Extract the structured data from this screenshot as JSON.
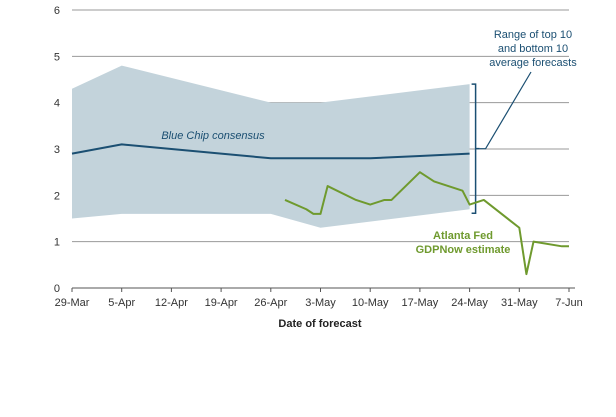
{
  "chart_data": {
    "type": "line",
    "title": "",
    "xlabel": "Date of forecast",
    "ylabel": "",
    "ylim": [
      0,
      6
    ],
    "yticks": [
      "0",
      "1",
      "2",
      "3",
      "4",
      "5",
      "6"
    ],
    "x_ticks": [
      "29-Mar",
      "5-Apr",
      "12-Apr",
      "19-Apr",
      "26-Apr",
      "3-May",
      "10-May",
      "17-May",
      "24-May",
      "31-May",
      "7-Jun"
    ],
    "grid": "horizontal",
    "legend": "none",
    "range_band": {
      "label": "Range of top 10 and bottom 10 average forecasts",
      "color": "#c3d3db",
      "upper": [
        {
          "x": "29-Mar",
          "y": 4.3
        },
        {
          "x": "5-Apr",
          "y": 4.8
        },
        {
          "x": "26-Apr",
          "y": 4.0
        },
        {
          "x": "3-May",
          "y": 4.0
        },
        {
          "x": "24-May",
          "y": 4.4
        }
      ],
      "lower": [
        {
          "x": "29-Mar",
          "y": 1.5
        },
        {
          "x": "5-Apr",
          "y": 1.6
        },
        {
          "x": "26-Apr",
          "y": 1.6
        },
        {
          "x": "3-May",
          "y": 1.3
        },
        {
          "x": "24-May",
          "y": 1.7
        }
      ]
    },
    "series": [
      {
        "name": "Blue Chip consensus",
        "color": "#1b4f72",
        "points": [
          {
            "x": "29-Mar",
            "y": 2.9
          },
          {
            "x": "5-Apr",
            "y": 3.1
          },
          {
            "x": "12-Apr",
            "y": 3.0
          },
          {
            "x": "19-Apr",
            "y": 2.9
          },
          {
            "x": "26-Apr",
            "y": 2.8
          },
          {
            "x": "3-May",
            "y": 2.8
          },
          {
            "x": "10-May",
            "y": 2.8
          },
          {
            "x": "17-May",
            "y": 2.85
          },
          {
            "x": "24-May",
            "y": 2.9
          }
        ]
      },
      {
        "name": "Atlanta Fed GDPNow estimate",
        "color": "#6f9a2e",
        "points": [
          {
            "x": "28-Apr",
            "y": 1.9
          },
          {
            "x": "1-May",
            "y": 1.7
          },
          {
            "x": "2-May",
            "y": 1.6
          },
          {
            "x": "3-May",
            "y": 1.6
          },
          {
            "x": "4-May",
            "y": 2.2
          },
          {
            "x": "8-May",
            "y": 1.9
          },
          {
            "x": "10-May",
            "y": 1.8
          },
          {
            "x": "12-May",
            "y": 1.9
          },
          {
            "x": "13-May",
            "y": 1.9
          },
          {
            "x": "17-May",
            "y": 2.5
          },
          {
            "x": "19-May",
            "y": 2.3
          },
          {
            "x": "23-May",
            "y": 2.1
          },
          {
            "x": "24-May",
            "y": 1.8
          },
          {
            "x": "26-May",
            "y": 1.9
          },
          {
            "x": "31-May",
            "y": 1.3
          },
          {
            "x": "1-Jun",
            "y": 0.3
          },
          {
            "x": "2-Jun",
            "y": 1.0
          },
          {
            "x": "6-Jun",
            "y": 0.9
          },
          {
            "x": "7-Jun",
            "y": 0.9
          }
        ]
      }
    ],
    "annotations": {
      "range_line1": "Range of top 10",
      "range_line2": "and bottom 10",
      "range_line3": "average forecasts",
      "bluechip_label": "Blue Chip consensus",
      "gdpnow_line1": "Atlanta Fed",
      "gdpnow_line2": "GDPNow estimate"
    }
  }
}
